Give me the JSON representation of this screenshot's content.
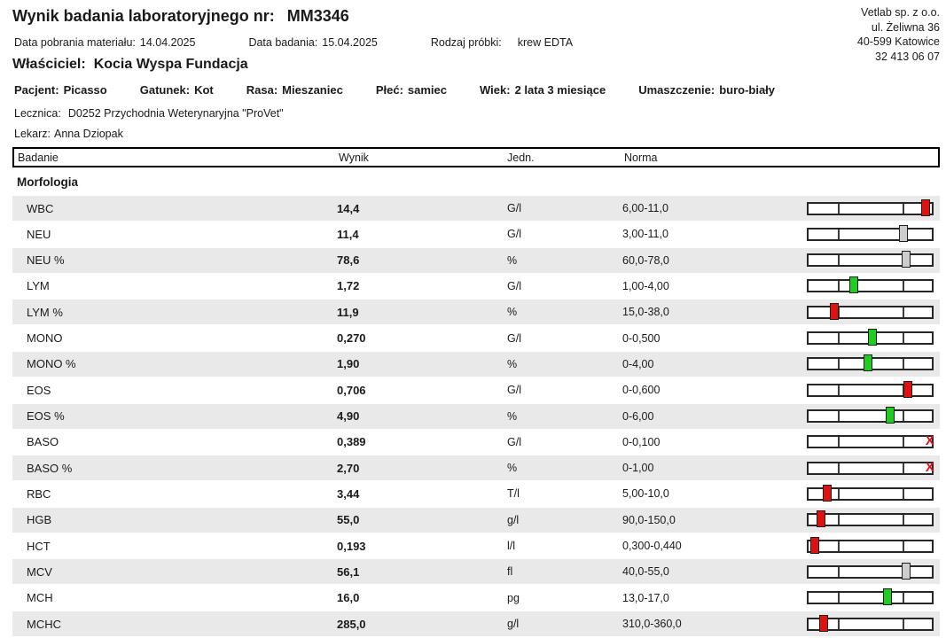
{
  "header": {
    "title_label": "Wynik badania laboratoryjnego nr:",
    "report_number": "MM3346",
    "meta": [
      {
        "label": "Data pobrania materiału:",
        "value": "14.04.2025"
      },
      {
        "label": "Data badania:",
        "value": "15.04.2025"
      },
      {
        "label": "Rodzaj próbki:",
        "value": "krew EDTA"
      }
    ],
    "lab": {
      "name": "Vetlab sp. z o.o.",
      "street": "ul. Żeliwna 36",
      "city": "40-599 Katowice",
      "phone": "32 413 06 07"
    },
    "owner_label": "Właściciel:",
    "owner_name": "Kocia Wyspa Fundacja"
  },
  "patient": {
    "fields": [
      {
        "label": "Pacjent:",
        "value": "Picasso"
      },
      {
        "label": "Gatunek:",
        "value": "Kot"
      },
      {
        "label": "Rasa:",
        "value": "Mieszaniec"
      },
      {
        "label": "Płeć:",
        "value": "samiec"
      },
      {
        "label": "Wiek:",
        "value": "2 lata 3 miesiące"
      },
      {
        "label": "Umaszczenie:",
        "value": "buro-biały"
      }
    ],
    "clinic_label": "Lecznica:",
    "clinic": "D0252 Przychodnia Weterynaryjna \"ProVet\"",
    "vet_label": "Lekarz:",
    "vet": "Anna Dziopak"
  },
  "table": {
    "columns": [
      "Badanie",
      "Wynik",
      "Jedn.",
      "Norma"
    ],
    "section": "Morfologia",
    "colors": {
      "red": "#e01111",
      "green": "#1fcc1f",
      "gray": "#cdcdcd",
      "row_alt": "#e9e9e9"
    },
    "bar_ticks": [
      0.24,
      0.75
    ],
    "out_of_range_glyph": "X",
    "rows": [
      {
        "name": "WBC",
        "value": "14,4",
        "unit": "G/l",
        "norm": "6,00-11,0",
        "marker": {
          "type": "box",
          "color": "red",
          "pos": 0.92
        }
      },
      {
        "name": "NEU",
        "value": "11,4",
        "unit": "G/l",
        "norm": "3,00-11,0",
        "marker": {
          "type": "box",
          "color": "gray",
          "pos": 0.75
        }
      },
      {
        "name": "NEU %",
        "value": "78,6",
        "unit": "%",
        "norm": "60,0-78,0",
        "marker": {
          "type": "box",
          "color": "gray",
          "pos": 0.77
        }
      },
      {
        "name": "LYM",
        "value": "1,72",
        "unit": "G/l",
        "norm": "1,00-4,00",
        "marker": {
          "type": "box",
          "color": "green",
          "pos": 0.36
        }
      },
      {
        "name": "LYM %",
        "value": "11,9",
        "unit": "%",
        "norm": "15,0-38,0",
        "marker": {
          "type": "box",
          "color": "red",
          "pos": 0.2
        }
      },
      {
        "name": "MONO",
        "value": "0,270",
        "unit": "G/l",
        "norm": "0-0,500",
        "marker": {
          "type": "box",
          "color": "green",
          "pos": 0.5
        }
      },
      {
        "name": "MONO %",
        "value": "1,90",
        "unit": "%",
        "norm": "0-4,00",
        "marker": {
          "type": "box",
          "color": "green",
          "pos": 0.47
        }
      },
      {
        "name": "EOS",
        "value": "0,706",
        "unit": "G/l",
        "norm": "0-0,600",
        "marker": {
          "type": "box",
          "color": "red",
          "pos": 0.78
        }
      },
      {
        "name": "EOS %",
        "value": "4,90",
        "unit": "%",
        "norm": "0-6,00",
        "marker": {
          "type": "box",
          "color": "green",
          "pos": 0.64
        }
      },
      {
        "name": "BASO",
        "value": "0,389",
        "unit": "G/l",
        "norm": "0-0,100",
        "marker": {
          "type": "x",
          "color": "red",
          "pos": 0.97
        }
      },
      {
        "name": "BASO %",
        "value": "2,70",
        "unit": "%",
        "norm": "0-1,00",
        "marker": {
          "type": "x",
          "color": "red",
          "pos": 0.97
        }
      },
      {
        "name": "RBC",
        "value": "3,44",
        "unit": "T/l",
        "norm": "5,00-10,0",
        "marker": {
          "type": "box",
          "color": "red",
          "pos": 0.15
        }
      },
      {
        "name": "HGB",
        "value": "55,0",
        "unit": "g/l",
        "norm": "90,0-150,0",
        "marker": {
          "type": "box",
          "color": "red",
          "pos": 0.1
        }
      },
      {
        "name": "HCT",
        "value": "0,193",
        "unit": "l/l",
        "norm": "0,300-0,440",
        "marker": {
          "type": "box",
          "color": "red",
          "pos": 0.05
        }
      },
      {
        "name": "MCV",
        "value": "56,1",
        "unit": "fl",
        "norm": "40,0-55,0",
        "marker": {
          "type": "box",
          "color": "gray",
          "pos": 0.77
        }
      },
      {
        "name": "MCH",
        "value": "16,0",
        "unit": "pg",
        "norm": "13,0-17,0",
        "marker": {
          "type": "box",
          "color": "green",
          "pos": 0.62
        }
      },
      {
        "name": "MCHC",
        "value": "285,0",
        "unit": "g/l",
        "norm": "310,0-360,0",
        "marker": {
          "type": "box",
          "color": "red",
          "pos": 0.12
        }
      }
    ]
  }
}
